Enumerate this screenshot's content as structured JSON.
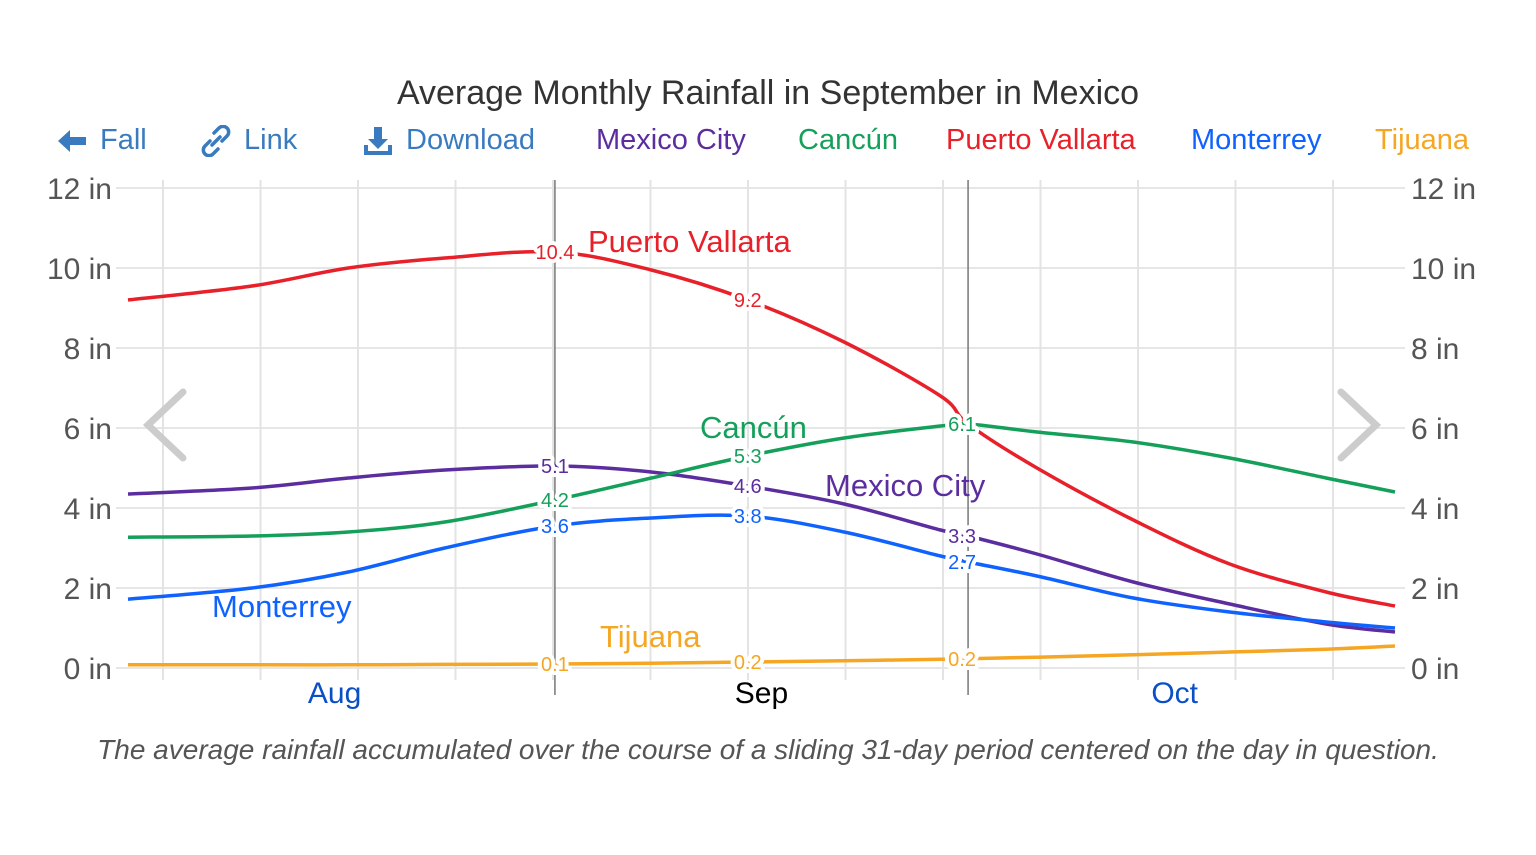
{
  "title": "Average Monthly Rainfall in September in Mexico",
  "toolbar": {
    "fall_label": "Fall",
    "fall_icon": "arrow-left-icon",
    "link_label": "Link",
    "link_icon": "link-icon",
    "download_label": "Download",
    "download_icon": "download-icon",
    "color": "#3a7bbf"
  },
  "caption": "The average rainfall accumulated over the course of a sliding 31-day period centered on the day in question.",
  "nav": {
    "prev_icon": "chevron-left-icon",
    "next_icon": "chevron-right-icon"
  },
  "chart_data": {
    "type": "line",
    "title": "Average Monthly Rainfall in September in Mexico",
    "ylabel": "",
    "xlabel": "",
    "ylim": [
      0,
      12
    ],
    "y_ticks": [
      "0 in",
      "2 in",
      "4 in",
      "6 in",
      "8 in",
      "10 in",
      "12 in"
    ],
    "y_tick_values": [
      0,
      2,
      4,
      6,
      8,
      10,
      12
    ],
    "y_axis_both_sides": true,
    "x_range": [
      "Aug 1",
      "Nov 1"
    ],
    "months": [
      {
        "label": "Aug",
        "center": "Aug 16",
        "color": "#0a4fc7"
      },
      {
        "label": "Sep",
        "center": "Sep 16",
        "color": "#000000"
      },
      {
        "label": "Oct",
        "center": "Oct 16",
        "color": "#0a4fc7"
      }
    ],
    "highlight_lines": [
      "Sep 1",
      "Oct 1"
    ],
    "grid": true,
    "legend_placement": "top",
    "x": [
      "Aug 1",
      "Aug 10",
      "Aug 17",
      "Aug 24",
      "Sep 1",
      "Sep 8",
      "Sep 15",
      "Sep 22",
      "Sep 29",
      "Oct 1",
      "Oct 6",
      "Oct 13",
      "Oct 20",
      "Oct 27",
      "Nov 1"
    ],
    "series": [
      {
        "name": "Mexico City",
        "color": "#5b2d9e",
        "values": [
          4.35,
          4.5,
          4.75,
          4.95,
          5.05,
          4.9,
          4.55,
          4.1,
          3.45,
          3.3,
          2.85,
          2.15,
          1.6,
          1.1,
          0.9
        ],
        "point_labels": [
          {
            "x": "Sep 1",
            "text": "5.1"
          },
          {
            "x": "Sep 15",
            "text": "4.6"
          },
          {
            "x": "Oct 1",
            "text": "3.3"
          }
        ]
      },
      {
        "name": "Cancún",
        "color": "#14a05a",
        "values": [
          3.27,
          3.3,
          3.4,
          3.65,
          4.2,
          4.75,
          5.3,
          5.75,
          6.05,
          6.1,
          5.9,
          5.65,
          5.25,
          4.75,
          4.4
        ],
        "point_labels": [
          {
            "x": "Sep 1",
            "text": "4.2"
          },
          {
            "x": "Sep 15",
            "text": "5.3"
          },
          {
            "x": "Oct 1",
            "text": "6.1"
          }
        ]
      },
      {
        "name": "Puerto Vallarta",
        "color": "#e8202a",
        "values": [
          9.2,
          9.55,
          10.0,
          10.25,
          10.4,
          9.95,
          9.2,
          8.15,
          6.8,
          6.1,
          5.0,
          3.7,
          2.6,
          1.9,
          1.55
        ],
        "point_labels": [
          {
            "x": "Sep 1",
            "text": "10.4"
          },
          {
            "x": "Sep 15",
            "text": "9.2"
          }
        ]
      },
      {
        "name": "Monterrey",
        "color": "#0f62fe",
        "values": [
          1.72,
          2.0,
          2.4,
          3.0,
          3.55,
          3.75,
          3.8,
          3.4,
          2.8,
          2.65,
          2.3,
          1.75,
          1.4,
          1.15,
          1.0
        ],
        "point_labels": [
          {
            "x": "Sep 1",
            "text": "3.6"
          },
          {
            "x": "Sep 15",
            "text": "3.8"
          },
          {
            "x": "Oct 1",
            "text": "2.7"
          }
        ]
      },
      {
        "name": "Tijuana",
        "color": "#f5a623",
        "values": [
          0.08,
          0.08,
          0.08,
          0.09,
          0.1,
          0.12,
          0.15,
          0.18,
          0.22,
          0.23,
          0.27,
          0.33,
          0.4,
          0.47,
          0.55
        ],
        "point_labels": [
          {
            "x": "Sep 1",
            "text": "0.1"
          },
          {
            "x": "Sep 15",
            "text": "0.2"
          },
          {
            "x": "Oct 1",
            "text": "0.2"
          }
        ]
      }
    ]
  }
}
